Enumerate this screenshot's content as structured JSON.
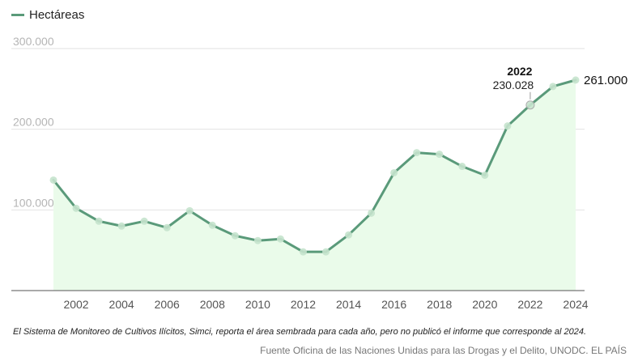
{
  "legend_label": "Hectáreas",
  "chart_data": {
    "type": "area",
    "x": [
      2001,
      2002,
      2003,
      2004,
      2005,
      2006,
      2007,
      2008,
      2009,
      2010,
      2011,
      2012,
      2013,
      2014,
      2015,
      2016,
      2017,
      2018,
      2019,
      2020,
      2021,
      2022,
      2023,
      2024
    ],
    "values": [
      137000,
      102000,
      86000,
      80000,
      86000,
      78000,
      99000,
      81000,
      68000,
      62000,
      64000,
      48000,
      48000,
      69000,
      96000,
      146000,
      171000,
      169000,
      154000,
      143000,
      204000,
      230028,
      253000,
      261000
    ],
    "series": [
      {
        "name": "Hectáreas",
        "color": "#5a9a7a"
      }
    ],
    "xticks": [
      "2002",
      "2004",
      "2006",
      "2008",
      "2010",
      "2012",
      "2014",
      "2016",
      "2018",
      "2020",
      "2022",
      "2024"
    ],
    "yticks": [
      "100.000",
      "200.000",
      "300.000"
    ],
    "ylim": [
      0,
      300000
    ],
    "xlim": [
      2001,
      2024
    ],
    "grid": true,
    "legend": "top-left",
    "annotations": {
      "highlight_year": "2022",
      "highlight_value": "230.028",
      "last_value": "261.000"
    },
    "fill_color": "#eafbea",
    "line_color": "#5a9a7a",
    "marker_color": "#c5e3cd"
  },
  "footnote": "El Sistema de Monitoreo de Cultivos Ilícitos, Simci, reporta el área sembrada para cada año, pero no publicó el informe que corresponde al 2024.",
  "source": "Fuente Oficina de las Naciones Unidas para las Drogas y el Delito, UNODC. EL PAÍS"
}
